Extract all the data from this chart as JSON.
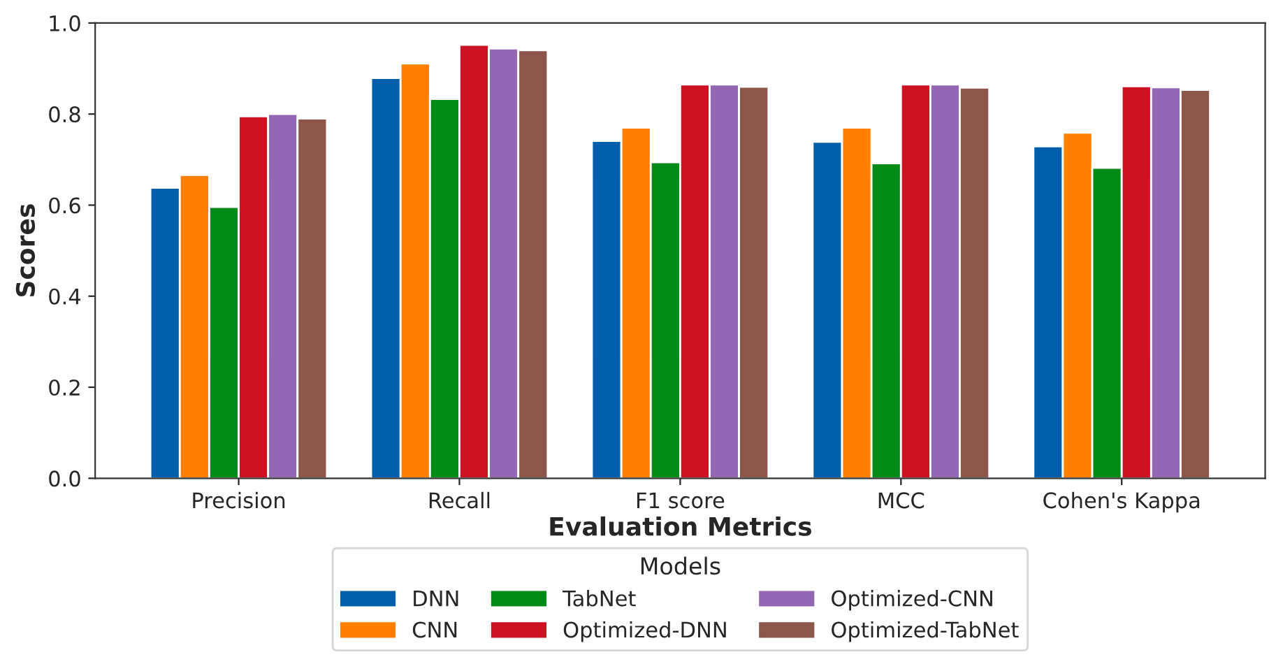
{
  "chart_data": {
    "type": "bar",
    "xlabel": "Evaluation Metrics",
    "ylabel": "Scores",
    "legend_title": "Models",
    "categories": [
      "Precision",
      "Recall",
      "F1 score",
      "MCC",
      "Cohen's Kappa"
    ],
    "series": [
      {
        "name": "DNN",
        "color": "#005eaa",
        "values": [
          0.638,
          0.879,
          0.741,
          0.739,
          0.729
        ]
      },
      {
        "name": "CNN",
        "color": "#ff7f00",
        "values": [
          0.666,
          0.911,
          0.77,
          0.77,
          0.759
        ]
      },
      {
        "name": "TabNet",
        "color": "#008b17",
        "values": [
          0.596,
          0.833,
          0.694,
          0.692,
          0.682
        ]
      },
      {
        "name": "Optimized-DNN",
        "color": "#cc1324",
        "values": [
          0.795,
          0.952,
          0.865,
          0.865,
          0.861
        ]
      },
      {
        "name": "Optimized-CNN",
        "color": "#9467b4",
        "values": [
          0.8,
          0.944,
          0.865,
          0.865,
          0.859
        ]
      },
      {
        "name": "Optimized-TabNet",
        "color": "#8c564b",
        "values": [
          0.79,
          0.94,
          0.86,
          0.858,
          0.853
        ]
      }
    ],
    "ylim": [
      0,
      1.0
    ],
    "yticks": [
      {
        "value": 0,
        "label": "0.0"
      },
      0.2,
      0.4,
      0.6,
      0.8,
      {
        "value": 1.0,
        "label": "1.0"
      }
    ],
    "grid": false,
    "legend": "bottom"
  }
}
